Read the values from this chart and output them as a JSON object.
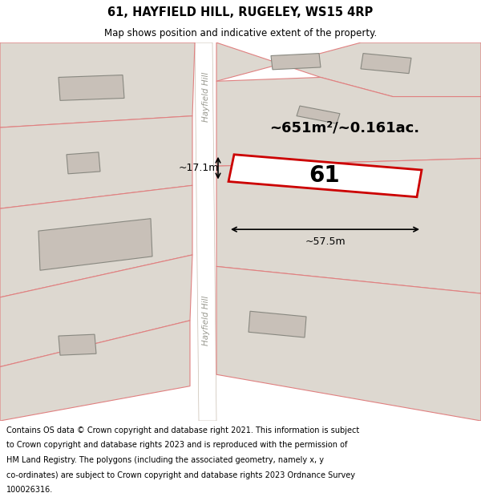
{
  "title": "61, HAYFIELD HILL, RUGELEY, WS15 4RP",
  "subtitle": "Map shows position and indicative extent of the property.",
  "footer_lines": [
    "Contains OS data © Crown copyright and database right 2021. This information is subject",
    "to Crown copyright and database rights 2023 and is reproduced with the permission of",
    "HM Land Registry. The polygons (including the associated geometry, namely x, y",
    "co-ordinates) are subject to Crown copyright and database rights 2023 Ordnance Survey",
    "100026316."
  ],
  "map_bg": "#ede8e2",
  "road_color": "#ffffff",
  "parcel_fill": "#ddd8d0",
  "parcel_edge": "#e08080",
  "main_fill": "#ffffff",
  "main_edge": "#cc0000",
  "building_fill": "#c8c0b8",
  "building_edge": "#888880",
  "area_text": "~651m²/~0.161ac.",
  "number_text": "61",
  "width_text": "~57.5m",
  "height_text": "~17.1m",
  "road_label": "Hayfield Hill"
}
